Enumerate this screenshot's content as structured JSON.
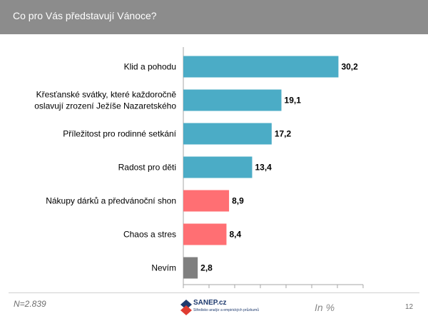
{
  "header": {
    "title": "Co pro Vás představují Vánoce?"
  },
  "footer": {
    "sample_size": "N=2.839",
    "unit": "In %",
    "page_number": "12",
    "logo_text": "SANEP.cz",
    "logo_subtext": "Středisko analýz a empirických průzkumů"
  },
  "colors": {
    "header_bg": "#8c8c8c",
    "positive": "#4bacc6",
    "negative": "#ff6f73",
    "neutral": "#7f7f7f"
  },
  "chart_data": {
    "type": "bar",
    "orientation": "horizontal",
    "title": "Co pro Vás představují Vánoce?",
    "unit": "In %",
    "xlim": [
      0,
      35
    ],
    "categories": [
      [
        "Klid a pohodu"
      ],
      [
        "Křesťanské svátky, které každoročně",
        "oslavují zrození Ježíše Nazaretského"
      ],
      [
        "Příležitost pro rodinné setkání"
      ],
      [
        "Radost pro děti"
      ],
      [
        "Nákupy dárků a předvánoční shon"
      ],
      [
        "Chaos a stres"
      ],
      [
        "Nevím"
      ]
    ],
    "values": [
      30.2,
      19.1,
      17.2,
      13.4,
      8.9,
      8.4,
      2.8
    ],
    "value_labels": [
      "30,2",
      "19,1",
      "17,2",
      "13,4",
      "8,9",
      "8,4",
      "2,8"
    ],
    "bar_colors": [
      "#4bacc6",
      "#4bacc6",
      "#4bacc6",
      "#4bacc6",
      "#ff6f73",
      "#ff6f73",
      "#7f7f7f"
    ]
  }
}
